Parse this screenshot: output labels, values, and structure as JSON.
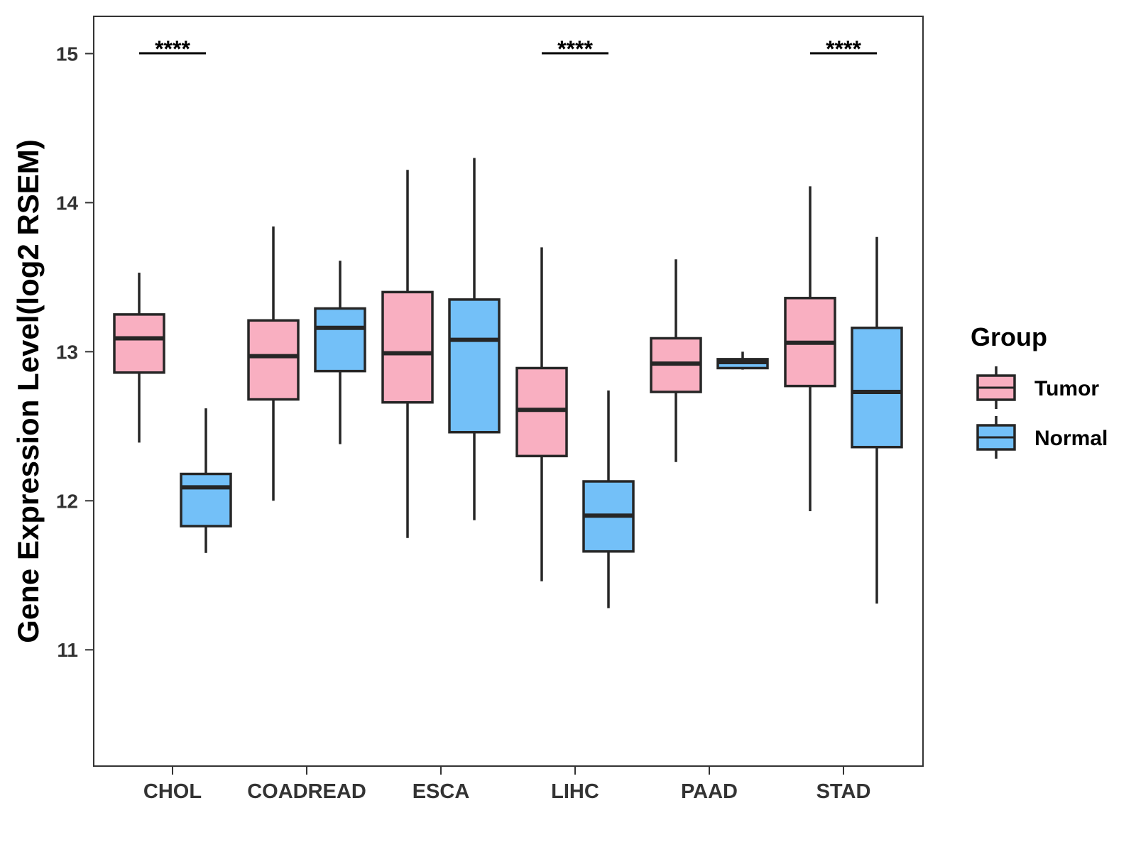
{
  "chart_data": {
    "type": "boxplot",
    "title": "",
    "xlabel": "",
    "ylabel": "Gene Expression Level(log2 RSEM)",
    "ylim": [
      10.22,
      15.25
    ],
    "yticks": [
      11,
      12,
      13,
      14,
      15
    ],
    "ytick_labels": [
      "11",
      "12",
      "13",
      "14",
      "15"
    ],
    "grid": false,
    "legend": {
      "title": "Group",
      "placement": "right",
      "items": [
        {
          "label": "Tumor",
          "color": "#F9AFC1"
        },
        {
          "label": "Normal",
          "color": "#73C0F8"
        }
      ]
    },
    "categories": [
      "CHOL",
      "COADREAD",
      "ESCA",
      "LIHC",
      "PAAD",
      "STAD"
    ],
    "series": [
      {
        "name": "Tumor",
        "color": "#F9AFC1",
        "boxes": [
          {
            "whisker_low": 12.39,
            "q1": 12.86,
            "median": 13.09,
            "q3": 13.25,
            "whisker_high": 13.53
          },
          {
            "whisker_low": 12.0,
            "q1": 12.68,
            "median": 12.97,
            "q3": 13.21,
            "whisker_high": 13.84
          },
          {
            "whisker_low": 11.75,
            "q1": 12.66,
            "median": 12.99,
            "q3": 13.4,
            "whisker_high": 14.22
          },
          {
            "whisker_low": 11.46,
            "q1": 12.3,
            "median": 12.61,
            "q3": 12.89,
            "whisker_high": 13.7
          },
          {
            "whisker_low": 12.26,
            "q1": 12.73,
            "median": 12.92,
            "q3": 13.09,
            "whisker_high": 13.62
          },
          {
            "whisker_low": 11.93,
            "q1": 12.77,
            "median": 13.06,
            "q3": 13.36,
            "whisker_high": 14.11
          }
        ]
      },
      {
        "name": "Normal",
        "color": "#73C0F8",
        "boxes": [
          {
            "whisker_low": 11.65,
            "q1": 11.83,
            "median": 12.09,
            "q3": 12.18,
            "whisker_high": 12.62
          },
          {
            "whisker_low": 12.38,
            "q1": 12.87,
            "median": 13.16,
            "q3": 13.29,
            "whisker_high": 13.61
          },
          {
            "whisker_low": 11.87,
            "q1": 12.46,
            "median": 13.08,
            "q3": 13.35,
            "whisker_high": 14.3
          },
          {
            "whisker_low": 11.28,
            "q1": 11.66,
            "median": 11.9,
            "q3": 12.13,
            "whisker_high": 12.74
          },
          {
            "whisker_low": 12.88,
            "q1": 12.89,
            "median": 12.93,
            "q3": 12.95,
            "whisker_high": 13.0
          },
          {
            "whisker_low": 11.31,
            "q1": 12.36,
            "median": 12.73,
            "q3": 13.16,
            "whisker_high": 13.77
          }
        ]
      }
    ],
    "annotations": [
      {
        "category": "CHOL",
        "text": "****"
      },
      {
        "category": "LIHC",
        "text": "****"
      },
      {
        "category": "STAD",
        "text": "****"
      }
    ]
  }
}
